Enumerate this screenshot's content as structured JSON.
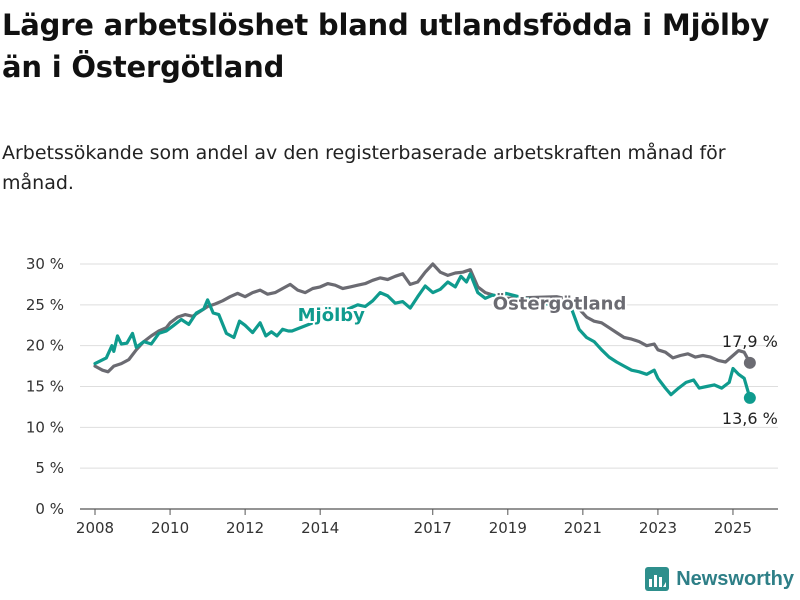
{
  "header": {
    "title": "Lägre arbetslöshet bland utlandsfödda i Mjölby än i Östergötland",
    "subtitle": "Arbetssökande som andel av den registerbaserade arbetskraften månad för månad."
  },
  "brand": {
    "name": "Newsworthy",
    "color": "#2e8f8c"
  },
  "chart_data": {
    "type": "line",
    "ylim": [
      0,
      30
    ],
    "xlim": [
      2007.6,
      2026.2
    ],
    "y_ticks": [
      0,
      5,
      10,
      15,
      20,
      25,
      30
    ],
    "y_tick_labels": [
      "0 %",
      "5 %",
      "10 %",
      "15 %",
      "20 %",
      "25 %",
      "30 %"
    ],
    "x_ticks": [
      2008,
      2010,
      2012,
      2014,
      2017,
      2019,
      2021,
      2023,
      2025
    ],
    "x_tick_labels": [
      "2008",
      "2010",
      "2012",
      "2014",
      "2017",
      "2019",
      "2021",
      "2023",
      "2025"
    ],
    "grid": true,
    "series": [
      {
        "name": "Mjölby",
        "color": "#0f9b8e",
        "end_label": "13,6 %",
        "points": [
          [
            2008.0,
            17.8
          ],
          [
            2008.3,
            18.5
          ],
          [
            2008.45,
            20.0
          ],
          [
            2008.5,
            19.3
          ],
          [
            2008.6,
            21.2
          ],
          [
            2008.7,
            20.2
          ],
          [
            2008.85,
            20.3
          ],
          [
            2009.0,
            21.5
          ],
          [
            2009.1,
            19.8
          ],
          [
            2009.3,
            20.5
          ],
          [
            2009.5,
            20.2
          ],
          [
            2009.7,
            21.5
          ],
          [
            2009.9,
            21.8
          ],
          [
            2010.1,
            22.5
          ],
          [
            2010.3,
            23.2
          ],
          [
            2010.5,
            22.6
          ],
          [
            2010.7,
            24.0
          ],
          [
            2010.9,
            24.5
          ],
          [
            2011.0,
            25.6
          ],
          [
            2011.15,
            24.0
          ],
          [
            2011.3,
            23.8
          ],
          [
            2011.5,
            21.5
          ],
          [
            2011.7,
            21.0
          ],
          [
            2011.85,
            23.0
          ],
          [
            2012.0,
            22.5
          ],
          [
            2012.2,
            21.6
          ],
          [
            2012.4,
            22.8
          ],
          [
            2012.55,
            21.2
          ],
          [
            2012.7,
            21.7
          ],
          [
            2012.85,
            21.2
          ],
          [
            2013.0,
            22.0
          ],
          [
            2013.15,
            21.8
          ],
          [
            2013.25,
            21.8
          ],
          [
            2014.8,
            24.6
          ],
          [
            2015.0,
            25.0
          ],
          [
            2015.2,
            24.8
          ],
          [
            2015.4,
            25.5
          ],
          [
            2015.6,
            26.5
          ],
          [
            2015.8,
            26.1
          ],
          [
            2016.0,
            25.2
          ],
          [
            2016.2,
            25.4
          ],
          [
            2016.4,
            24.6
          ],
          [
            2016.6,
            26.0
          ],
          [
            2016.8,
            27.3
          ],
          [
            2017.0,
            26.5
          ],
          [
            2017.2,
            26.9
          ],
          [
            2017.4,
            27.8
          ],
          [
            2017.6,
            27.2
          ],
          [
            2017.75,
            28.5
          ],
          [
            2017.9,
            27.8
          ],
          [
            2018.0,
            28.8
          ],
          [
            2018.2,
            26.5
          ],
          [
            2018.4,
            25.8
          ],
          [
            2018.6,
            26.2
          ],
          [
            2018.8,
            26.0
          ],
          [
            2018.95,
            26.4
          ],
          [
            2020.3,
            24.8
          ],
          [
            2020.5,
            25.2
          ],
          [
            2020.7,
            24.5
          ],
          [
            2020.9,
            22.0
          ],
          [
            2021.1,
            21.0
          ],
          [
            2021.3,
            20.5
          ],
          [
            2021.5,
            19.5
          ],
          [
            2021.7,
            18.6
          ],
          [
            2021.9,
            18.0
          ],
          [
            2022.1,
            17.5
          ],
          [
            2022.3,
            17.0
          ],
          [
            2022.5,
            16.8
          ],
          [
            2022.7,
            16.5
          ],
          [
            2022.9,
            17.0
          ],
          [
            2023.0,
            16.0
          ],
          [
            2023.2,
            14.8
          ],
          [
            2023.35,
            14.0
          ],
          [
            2023.55,
            14.8
          ],
          [
            2023.75,
            15.5
          ],
          [
            2023.95,
            15.8
          ],
          [
            2024.1,
            14.8
          ],
          [
            2024.3,
            15.0
          ],
          [
            2024.5,
            15.2
          ],
          [
            2024.7,
            14.8
          ],
          [
            2024.9,
            15.5
          ],
          [
            2025.0,
            17.2
          ],
          [
            2025.15,
            16.5
          ],
          [
            2025.3,
            16.0
          ],
          [
            2025.45,
            13.6
          ]
        ]
      },
      {
        "name": "Östergötland",
        "color": "#6b6b72",
        "end_label": "17,9 %",
        "points": [
          [
            2008.0,
            17.5
          ],
          [
            2008.2,
            17.0
          ],
          [
            2008.35,
            16.8
          ],
          [
            2008.5,
            17.5
          ],
          [
            2008.7,
            17.8
          ],
          [
            2008.9,
            18.3
          ],
          [
            2009.1,
            19.5
          ],
          [
            2009.3,
            20.5
          ],
          [
            2009.5,
            21.2
          ],
          [
            2009.7,
            21.8
          ],
          [
            2009.9,
            22.2
          ],
          [
            2010.0,
            22.8
          ],
          [
            2010.2,
            23.5
          ],
          [
            2010.4,
            23.8
          ],
          [
            2010.6,
            23.6
          ],
          [
            2010.8,
            24.2
          ],
          [
            2011.0,
            24.8
          ],
          [
            2011.2,
            25.1
          ],
          [
            2011.4,
            25.5
          ],
          [
            2011.6,
            26.0
          ],
          [
            2011.8,
            26.4
          ],
          [
            2012.0,
            26.0
          ],
          [
            2012.2,
            26.5
          ],
          [
            2012.4,
            26.8
          ],
          [
            2012.6,
            26.3
          ],
          [
            2012.8,
            26.5
          ],
          [
            2013.0,
            27.0
          ],
          [
            2013.2,
            27.5
          ],
          [
            2013.4,
            26.8
          ],
          [
            2013.6,
            26.5
          ],
          [
            2013.8,
            27.0
          ],
          [
            2014.0,
            27.2
          ],
          [
            2014.2,
            27.6
          ],
          [
            2014.4,
            27.4
          ],
          [
            2014.6,
            27.0
          ],
          [
            2014.8,
            27.2
          ],
          [
            2015.0,
            27.4
          ],
          [
            2015.2,
            27.6
          ],
          [
            2015.4,
            28.0
          ],
          [
            2015.6,
            28.3
          ],
          [
            2015.8,
            28.1
          ],
          [
            2016.0,
            28.5
          ],
          [
            2016.2,
            28.8
          ],
          [
            2016.4,
            27.5
          ],
          [
            2016.6,
            27.8
          ],
          [
            2016.8,
            29.0
          ],
          [
            2017.0,
            30.0
          ],
          [
            2017.2,
            29.0
          ],
          [
            2017.4,
            28.6
          ],
          [
            2017.6,
            28.9
          ],
          [
            2017.8,
            29.0
          ],
          [
            2018.0,
            29.3
          ],
          [
            2018.2,
            27.2
          ],
          [
            2018.4,
            26.5
          ],
          [
            2018.6,
            26.2
          ],
          [
            2018.8,
            26.0
          ],
          [
            2018.95,
            25.8
          ],
          [
            2020.3,
            26.0
          ],
          [
            2020.5,
            25.8
          ],
          [
            2020.7,
            25.2
          ],
          [
            2020.9,
            24.5
          ],
          [
            2021.1,
            23.5
          ],
          [
            2021.3,
            23.0
          ],
          [
            2021.5,
            22.8
          ],
          [
            2021.7,
            22.2
          ],
          [
            2021.9,
            21.6
          ],
          [
            2022.1,
            21.0
          ],
          [
            2022.3,
            20.8
          ],
          [
            2022.5,
            20.5
          ],
          [
            2022.7,
            20.0
          ],
          [
            2022.9,
            20.2
          ],
          [
            2023.0,
            19.5
          ],
          [
            2023.2,
            19.2
          ],
          [
            2023.4,
            18.5
          ],
          [
            2023.6,
            18.8
          ],
          [
            2023.8,
            19.0
          ],
          [
            2024.0,
            18.6
          ],
          [
            2024.2,
            18.8
          ],
          [
            2024.4,
            18.6
          ],
          [
            2024.6,
            18.2
          ],
          [
            2024.8,
            18.0
          ],
          [
            2025.0,
            18.8
          ],
          [
            2025.15,
            19.4
          ],
          [
            2025.3,
            19.2
          ],
          [
            2025.45,
            17.9
          ]
        ]
      }
    ],
    "annotations": [
      {
        "text": "Mjölby",
        "series": "Mjölby",
        "x": 2013.4,
        "y": 23.0
      },
      {
        "text": "Östergötland",
        "series": "Östergötland",
        "x": 2018.6,
        "y": 24.4
      }
    ]
  }
}
